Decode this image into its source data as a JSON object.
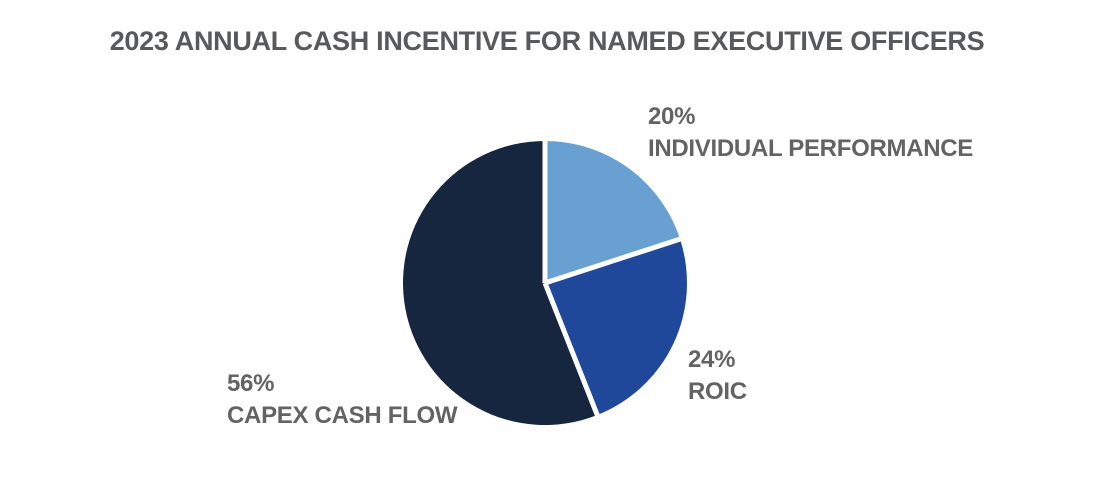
{
  "chart_data": {
    "type": "pie",
    "title": "2023 ANNUAL CASH INCENTIVE FOR NAMED EXECUTIVE OFFICERS",
    "start_angle_deg": 0,
    "direction": "clockwise",
    "separator_color": "#FFFFFF",
    "separator_width": 5,
    "legend_position": "outside-labels",
    "title_color": "#58595B",
    "label_color": "#636363",
    "slices": [
      {
        "name": "INDIVIDUAL PERFORMANCE",
        "value": 20,
        "value_label": "20%",
        "color": "#69A0D2"
      },
      {
        "name": "ROIC",
        "value": 24,
        "value_label": "24%",
        "color": "#20489A"
      },
      {
        "name": "CAPEX CASH FLOW",
        "value": 56,
        "value_label": "56%",
        "color": "#17263F"
      }
    ]
  }
}
